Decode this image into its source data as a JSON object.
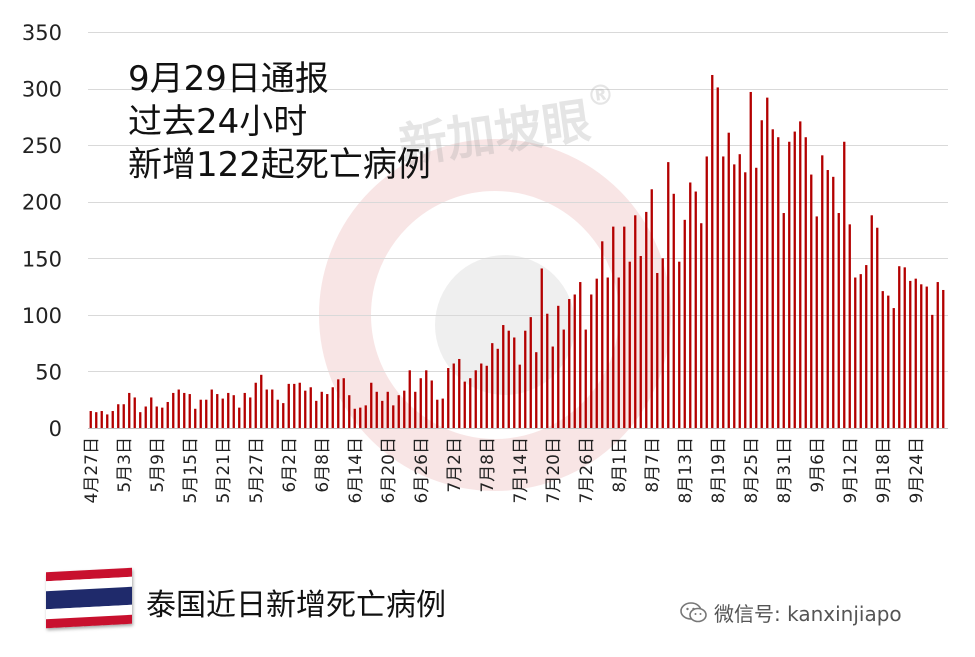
{
  "annotation": {
    "line1": "9月29日通报",
    "line2": "过去24小时",
    "line3": "新增122起死亡病例"
  },
  "caption": "泰国近日新增死亡病例",
  "watermark": "新加坡眼",
  "watermark_mark": "®",
  "wechat_label": "微信号: kanxinjiapo",
  "colors": {
    "bar": "#b30000",
    "grid": "#d9d9d9",
    "flag_red": "#c8102e",
    "flag_white": "#ffffff",
    "flag_blue": "#1f2a6b",
    "watermark_red": "#f3d6d6"
  },
  "chart_data": {
    "type": "bar",
    "title": "",
    "xlabel": "",
    "ylabel": "",
    "ylim": [
      0,
      350
    ],
    "yticks": [
      0,
      50,
      100,
      150,
      200,
      250,
      300,
      350
    ],
    "grid": true,
    "xtick_labels": [
      "4月27日",
      "5月3日",
      "5月9日",
      "5月15日",
      "5月21日",
      "5月27日",
      "6月2日",
      "6月8日",
      "6月14日",
      "6月20日",
      "6月26日",
      "7月2日",
      "7月8日",
      "7月14日",
      "7月20日",
      "7月26日",
      "8月1日",
      "8月7日",
      "8月13日",
      "8月19日",
      "8月25日",
      "8月31日",
      "9月6日",
      "9月12日",
      "9月18日",
      "9月24日"
    ],
    "xtick_every": 6,
    "values": [
      15,
      14,
      15,
      12,
      15,
      21,
      21,
      31,
      27,
      14,
      19,
      27,
      19,
      18,
      23,
      31,
      34,
      31,
      30,
      17,
      25,
      25,
      34,
      30,
      26,
      31,
      29,
      18,
      31,
      27,
      40,
      47,
      34,
      34,
      25,
      22,
      39,
      39,
      40,
      33,
      36,
      24,
      32,
      30,
      36,
      43,
      44,
      29,
      17,
      18,
      20,
      40,
      32,
      24,
      32,
      20,
      29,
      33,
      51,
      32,
      44,
      51,
      42,
      25,
      26,
      53,
      57,
      61,
      41,
      44,
      51,
      57,
      55,
      75,
      70,
      91,
      86,
      80,
      56,
      86,
      98,
      67,
      141,
      101,
      72,
      108,
      87,
      114,
      118,
      129,
      87,
      118,
      132,
      165,
      133,
      178,
      133,
      178,
      147,
      188,
      152,
      191,
      211,
      137,
      150,
      235,
      207,
      147,
      184,
      217,
      209,
      181,
      240,
      312,
      301,
      240,
      261,
      233,
      242,
      226,
      297,
      230,
      272,
      292,
      264,
      257,
      190,
      253,
      262,
      271,
      257,
      224,
      187,
      241,
      228,
      222,
      190,
      253,
      180,
      133,
      136,
      144,
      188,
      177,
      121,
      117,
      106,
      143,
      142,
      130,
      132,
      127,
      125,
      100,
      129,
      122
    ]
  }
}
